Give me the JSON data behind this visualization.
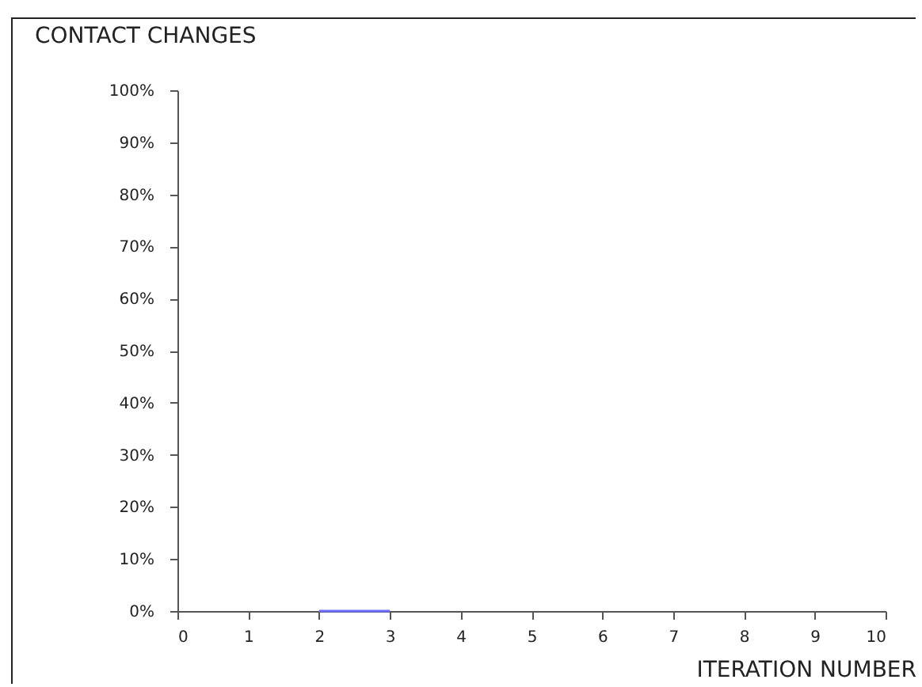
{
  "chart_data": {
    "type": "line",
    "title": "CONTACT CHANGES",
    "xlabel": "ITERATION NUMBER",
    "series": [
      {
        "color": "#6b6bff",
        "x": [
          2,
          3
        ],
        "values": [
          0,
          0
        ]
      }
    ],
    "xlim": [
      0,
      10
    ],
    "xticks": [
      0,
      1,
      2,
      3,
      4,
      5,
      6,
      7,
      8,
      9,
      10
    ],
    "ylim": [
      0,
      100
    ],
    "yticks": [
      {
        "value": 0,
        "label": "0%"
      },
      {
        "value": 10,
        "label": "10%"
      },
      {
        "value": 20,
        "label": "20%"
      },
      {
        "value": 30,
        "label": "30%"
      },
      {
        "value": 40,
        "label": "40%"
      },
      {
        "value": 50,
        "label": "50%"
      },
      {
        "value": 60,
        "label": "60%"
      },
      {
        "value": 70,
        "label": "70%"
      },
      {
        "value": 80,
        "label": "80%"
      },
      {
        "value": 90,
        "label": "90%"
      },
      {
        "value": 100,
        "label": "100%"
      }
    ],
    "grid": false,
    "marker": "none",
    "line_style": "solid"
  }
}
